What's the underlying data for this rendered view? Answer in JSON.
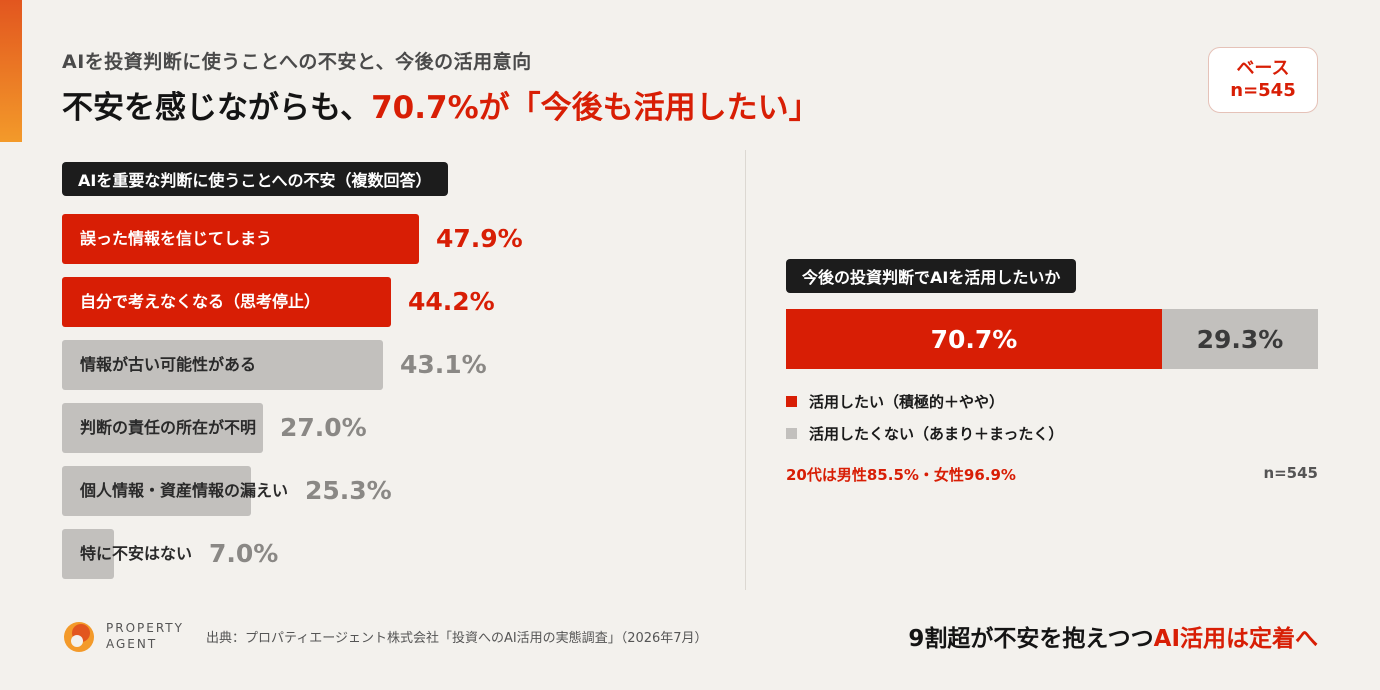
{
  "header": {
    "subtitle": "AIを投資判断に使うことへの不安と、今後の活用意向",
    "headline_pre": "不安を感じながらも、",
    "headline_red": "70.7%が「今後も活用したい」",
    "base_label": "ベース",
    "base_n": "n=545"
  },
  "colors": {
    "accent_red": "#d81e05",
    "gray_bar": "#c2c0bd",
    "dark_label": "#1c1c1c"
  },
  "chart_data": [
    {
      "type": "bar",
      "orientation": "horizontal",
      "title": "AIを重要な判断に使うことへの不安（複数回答）",
      "categories": [
        "誤った情報を信じてしまう",
        "自分で考えなくなる（思考停止）",
        "情報が古い可能性がある",
        "判断の責任の所在が不明",
        "個人情報・資産情報の漏えい",
        "特に不安はない"
      ],
      "values": [
        47.9,
        44.2,
        43.1,
        27.0,
        25.3,
        7.0
      ],
      "value_labels": [
        "47.9%",
        "44.2%",
        "43.1%",
        "27.0%",
        "25.3%",
        "7.0%"
      ],
      "highlight": [
        true,
        true,
        false,
        false,
        false,
        false
      ],
      "unit": "%",
      "xlim": [
        0,
        100
      ]
    },
    {
      "type": "bar",
      "orientation": "horizontal-stacked",
      "title": "今後の投資判断でAIを活用したいか",
      "series": [
        {
          "name": "活用したい（積極的＋やや）",
          "value": 70.7,
          "label": "70.7%",
          "color": "#d81e05"
        },
        {
          "name": "活用したくない（あまり＋まったく）",
          "value": 29.3,
          "label": "29.3%",
          "color": "#c2c0bd"
        }
      ],
      "note": "20代は男性85.5%・女性96.9%",
      "n": "n=545",
      "xlim": [
        0,
        100
      ]
    }
  ],
  "footer": {
    "logo_line1": "PROPERTY",
    "logo_line2": "AGENT",
    "source": "出典：プロパティエージェント株式会社「投資へのAI活用の実態調査」（2026年7月）",
    "message_pre": "9割超が不安を抱えつつ",
    "message_red": "AI活用は定着へ"
  }
}
